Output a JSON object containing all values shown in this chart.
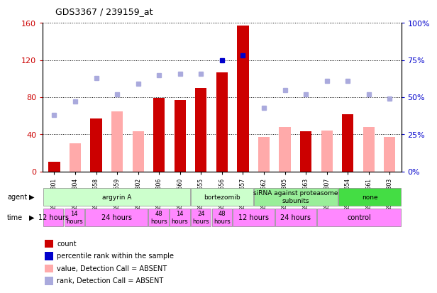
{
  "title": "GDS3367 / 239159_at",
  "samples": [
    "GSM297801",
    "GSM297804",
    "GSM212658",
    "GSM212659",
    "GSM297802",
    "GSM297806",
    "GSM212660",
    "GSM212655",
    "GSM212656",
    "GSM212657",
    "GSM212662",
    "GSM297805",
    "GSM212663",
    "GSM297807",
    "GSM212654",
    "GSM212661",
    "GSM297803"
  ],
  "count_values": [
    10,
    0,
    57,
    0,
    0,
    79,
    77,
    90,
    107,
    157,
    0,
    0,
    43,
    0,
    62,
    0,
    0
  ],
  "count_absent": [
    0,
    30,
    0,
    65,
    43,
    0,
    0,
    0,
    0,
    0,
    37,
    48,
    0,
    44,
    0,
    48,
    37
  ],
  "rank_present": [
    0,
    0,
    0,
    0,
    0,
    0,
    0,
    0,
    75,
    78,
    0,
    0,
    0,
    0,
    0,
    0,
    0
  ],
  "rank_absent": [
    38,
    47,
    63,
    52,
    59,
    65,
    66,
    66,
    0,
    0,
    43,
    55,
    52,
    61,
    61,
    52,
    49
  ],
  "ylim_left": [
    0,
    160
  ],
  "ylim_right": [
    0,
    100
  ],
  "yticks_left": [
    0,
    40,
    80,
    120,
    160
  ],
  "yticks_right": [
    0,
    25,
    50,
    75,
    100
  ],
  "ytick_labels_left": [
    "0",
    "40",
    "80",
    "120",
    "160"
  ],
  "ytick_labels_right": [
    "0%",
    "25%",
    "50%",
    "75%",
    "100%"
  ],
  "agent_groups": [
    {
      "label": "argyrin A",
      "start": 0,
      "end": 7,
      "color": "#ccffcc"
    },
    {
      "label": "bortezomib",
      "start": 7,
      "end": 10,
      "color": "#ccffcc"
    },
    {
      "label": "siRNA against proteasome\nsubunits",
      "start": 10,
      "end": 14,
      "color": "#99ee99"
    },
    {
      "label": "none",
      "start": 14,
      "end": 17,
      "color": "#44dd44"
    }
  ],
  "time_groups": [
    {
      "label": "12 hours",
      "start": 0,
      "end": 1,
      "fontsize": 7
    },
    {
      "label": "14\nhours",
      "start": 1,
      "end": 2,
      "fontsize": 6
    },
    {
      "label": "24 hours",
      "start": 2,
      "end": 5,
      "fontsize": 7
    },
    {
      "label": "48\nhours",
      "start": 5,
      "end": 6,
      "fontsize": 6
    },
    {
      "label": "14\nhours",
      "start": 6,
      "end": 7,
      "fontsize": 6
    },
    {
      "label": "24\nhours",
      "start": 7,
      "end": 8,
      "fontsize": 6
    },
    {
      "label": "48\nhours",
      "start": 8,
      "end": 9,
      "fontsize": 6
    },
    {
      "label": "12 hours",
      "start": 9,
      "end": 11,
      "fontsize": 7
    },
    {
      "label": "24 hours",
      "start": 11,
      "end": 13,
      "fontsize": 7
    },
    {
      "label": "control",
      "start": 13,
      "end": 17,
      "fontsize": 7
    }
  ],
  "bar_width": 0.55,
  "count_color": "#cc0000",
  "count_absent_color": "#ffaaaa",
  "rank_present_color": "#0000cc",
  "rank_absent_color": "#aaaadd",
  "bg_color": "#ffffff",
  "time_color": "#ff88ff",
  "legend_items": [
    {
      "label": "count",
      "color": "#cc0000"
    },
    {
      "label": "percentile rank within the sample",
      "color": "#0000cc"
    },
    {
      "label": "value, Detection Call = ABSENT",
      "color": "#ffaaaa"
    },
    {
      "label": "rank, Detection Call = ABSENT",
      "color": "#aaaadd"
    }
  ]
}
